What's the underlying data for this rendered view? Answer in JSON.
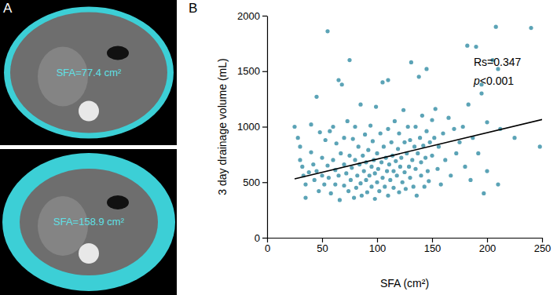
{
  "panel_a": {
    "label": "A",
    "images": [
      {
        "annotation": "SFA=77.4 cm²"
      },
      {
        "annotation": "SFA=158.9 cm²"
      }
    ]
  },
  "chart_data": {
    "type": "scatter",
    "panel_label": "B",
    "x_label": "SFA (cm²)",
    "y_label": "3 day drainage volume (mL)",
    "annotations": [
      "Rs=0.347",
      "p<0.001"
    ],
    "color": "#5ba3b6",
    "marker": "circle",
    "xlim": [
      0,
      250
    ],
    "xticks": [
      0,
      50,
      100,
      150,
      200,
      250
    ],
    "ylim": [
      0,
      2000
    ],
    "yticks": [
      0,
      500,
      1000,
      1500,
      2000
    ],
    "grid": false,
    "trend_line": {
      "x": [
        25,
        250
      ],
      "y": [
        530,
        1065
      ]
    },
    "x": [
      25,
      28,
      30,
      30,
      32,
      33,
      35,
      35,
      38,
      40,
      40,
      42,
      43,
      45,
      45,
      47,
      48,
      50,
      50,
      52,
      53,
      55,
      55,
      56,
      57,
      58,
      60,
      60,
      62,
      62,
      63,
      65,
      65,
      66,
      67,
      68,
      70,
      70,
      70,
      72,
      73,
      74,
      75,
      75,
      76,
      77,
      78,
      79,
      80,
      80,
      81,
      82,
      83,
      84,
      85,
      85,
      86,
      87,
      88,
      89,
      90,
      90,
      91,
      92,
      93,
      94,
      95,
      95,
      96,
      97,
      98,
      98,
      99,
      100,
      100,
      101,
      102,
      103,
      104,
      105,
      105,
      106,
      107,
      108,
      109,
      110,
      110,
      110,
      111,
      112,
      113,
      114,
      115,
      115,
      116,
      117,
      118,
      119,
      120,
      120,
      121,
      122,
      123,
      124,
      125,
      125,
      126,
      127,
      128,
      129,
      130,
      130,
      131,
      132,
      133,
      134,
      135,
      135,
      136,
      137,
      138,
      139,
      140,
      140,
      141,
      142,
      143,
      144,
      145,
      145,
      146,
      147,
      148,
      150,
      150,
      152,
      153,
      155,
      156,
      158,
      160,
      162,
      165,
      167,
      170,
      172,
      175,
      178,
      180,
      182,
      183,
      185,
      187,
      190,
      192,
      195,
      195,
      197,
      200,
      200,
      205,
      208,
      210,
      210,
      212,
      225,
      240,
      248
    ],
    "values": [
      1000,
      900,
      820,
      700,
      640,
      560,
      480,
      360,
      590,
      1020,
      770,
      660,
      520,
      1270,
      600,
      420,
      950,
      720,
      560,
      480,
      880,
      1860,
      650,
      540,
      960,
      400,
      1000,
      700,
      610,
      480,
      850,
      1420,
      560,
      340,
      760,
      1380,
      900,
      660,
      470,
      580,
      1050,
      420,
      1600,
      740,
      520,
      630,
      890,
      360,
      700,
      1000,
      450,
      560,
      820,
      660,
      490,
      1200,
      380,
      740,
      600,
      930,
      520,
      680,
      410,
      790,
      560,
      1010,
      640,
      460,
      870,
      700,
      350,
      580,
      1180,
      760,
      500,
      620,
      420,
      940,
      680,
      1400,
      540,
      820,
      460,
      720,
      600,
      1420,
      980,
      380,
      660,
      520,
      860,
      740,
      450,
      600,
      1050,
      690,
      560,
      800,
      410,
      940,
      640,
      720,
      500,
      1150,
      860,
      590,
      440,
      760,
      1000,
      640,
      540,
      880,
      1580,
      700,
      460,
      820,
      1000,
      620,
      380,
      760,
      1450,
      900,
      560,
      680,
      1100,
      830,
      460,
      720,
      1520,
      960,
      600,
      510,
      860,
      1060,
      740,
      900,
      1160,
      620,
      820,
      480,
      940,
      700,
      1080,
      560,
      980,
      760,
      860,
      1000,
      640,
      1730,
      1200,
      520,
      900,
      1720,
      760,
      1380,
      1300,
      400,
      1040,
      600,
      1600,
      1900,
      1520,
      480,
      980,
      900,
      1890,
      820
    ]
  }
}
